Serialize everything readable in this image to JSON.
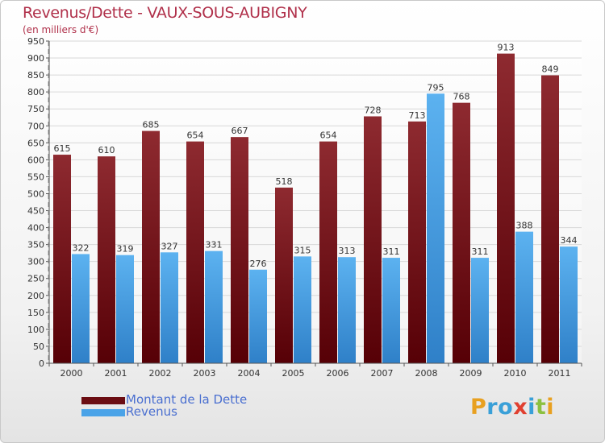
{
  "header": {
    "title": "Revenus/Dette - VAUX-SOUS-AUBIGNY",
    "subtitle": "(en milliers d'€)"
  },
  "colors": {
    "debt": "#7a1a1f",
    "revenue": "#4aa3e8",
    "title": "#b0304a",
    "legend_text": "#4a6fd0"
  },
  "legend": {
    "items": [
      {
        "label": "Montant de la Dette",
        "color": "#6b0d12"
      },
      {
        "label": "Revenus",
        "color": "#4aa3e8"
      }
    ]
  },
  "logo": {
    "text": "Proxiti",
    "letters": [
      {
        "ch": "P",
        "color": "#e8a020"
      },
      {
        "ch": "r",
        "color": "#3aa0d8"
      },
      {
        "ch": "o",
        "color": "#3aa0d8"
      },
      {
        "ch": "x",
        "color": "#e04030"
      },
      {
        "ch": "i",
        "color": "#3aa0d8"
      },
      {
        "ch": "t",
        "color": "#8cc040"
      },
      {
        "ch": "i",
        "color": "#e8a020"
      }
    ]
  },
  "chart_data": {
    "type": "bar",
    "categories": [
      "2000",
      "2001",
      "2002",
      "2003",
      "2004",
      "2005",
      "2006",
      "2007",
      "2008",
      "2009",
      "2010",
      "2011"
    ],
    "series": [
      {
        "name": "Montant de la Dette",
        "values": [
          615,
          610,
          685,
          654,
          667,
          518,
          654,
          728,
          713,
          768,
          913,
          849
        ]
      },
      {
        "name": "Revenus",
        "values": [
          322,
          319,
          327,
          331,
          276,
          315,
          313,
          311,
          795,
          311,
          388,
          344
        ]
      }
    ],
    "ylim": [
      0,
      950
    ],
    "yticks": [
      0,
      50,
      100,
      150,
      200,
      250,
      300,
      350,
      400,
      450,
      500,
      550,
      600,
      650,
      700,
      750,
      800,
      850,
      900,
      950
    ],
    "grid": true,
    "legend_position": "bottom-left"
  }
}
